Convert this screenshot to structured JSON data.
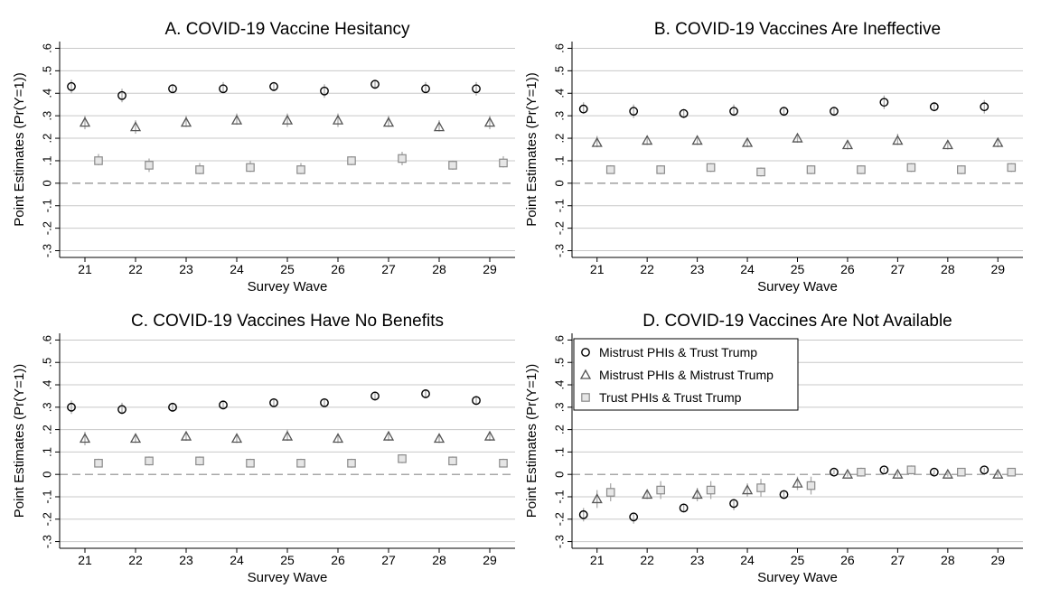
{
  "chart_data": [
    {
      "type": "scatter",
      "title": "A. COVID-19 Vaccine Hesitancy",
      "xlabel": "Survey Wave",
      "ylabel": "Point Estimates (Pr(Y=1))",
      "categories": [
        "21",
        "22",
        "23",
        "24",
        "25",
        "26",
        "27",
        "28",
        "29"
      ],
      "ylim": [
        -0.33,
        0.63
      ],
      "yticks": [
        ".6",
        ".5",
        ".4",
        ".3",
        ".2",
        ".1",
        "0",
        "-.1",
        "-.2",
        "-.3"
      ],
      "grid": true,
      "reference_line": 0,
      "series": [
        {
          "name": "Mistrust PHIs & Trust Trump",
          "marker": "circle",
          "values": [
            0.43,
            0.39,
            0.42,
            0.42,
            0.43,
            0.41,
            0.44,
            0.42,
            0.42
          ],
          "ci_low": [
            0.4,
            0.36,
            0.4,
            0.4,
            0.41,
            0.38,
            0.42,
            0.4,
            0.39
          ],
          "ci_high": [
            0.46,
            0.42,
            0.44,
            0.45,
            0.45,
            0.44,
            0.46,
            0.45,
            0.45
          ]
        },
        {
          "name": "Mistrust PHIs & Mistrust Trump",
          "marker": "triangle",
          "values": [
            0.27,
            0.25,
            0.27,
            0.28,
            0.28,
            0.28,
            0.27,
            0.25,
            0.27
          ],
          "ci_low": [
            0.24,
            0.22,
            0.25,
            0.26,
            0.25,
            0.25,
            0.25,
            0.23,
            0.24
          ],
          "ci_high": [
            0.3,
            0.28,
            0.3,
            0.31,
            0.31,
            0.31,
            0.3,
            0.28,
            0.3
          ]
        },
        {
          "name": "Trust PHIs & Trust Trump",
          "marker": "square",
          "values": [
            0.1,
            0.08,
            0.06,
            0.07,
            0.06,
            0.1,
            0.11,
            0.08,
            0.09
          ],
          "ci_low": [
            0.08,
            0.05,
            0.04,
            0.05,
            0.04,
            0.08,
            0.08,
            0.06,
            0.07
          ],
          "ci_high": [
            0.13,
            0.11,
            0.09,
            0.1,
            0.09,
            0.12,
            0.14,
            0.1,
            0.12
          ]
        }
      ]
    },
    {
      "type": "scatter",
      "title": "B. COVID-19 Vaccines Are Ineffective",
      "xlabel": "Survey Wave",
      "ylabel": "Point Estimates (Pr(Y=1))",
      "categories": [
        "21",
        "22",
        "23",
        "24",
        "25",
        "26",
        "27",
        "28",
        "29"
      ],
      "ylim": [
        -0.33,
        0.63
      ],
      "yticks": [
        ".6",
        ".5",
        ".4",
        ".3",
        ".2",
        ".1",
        "0",
        "-.1",
        "-.2",
        "-.3"
      ],
      "grid": true,
      "reference_line": 0,
      "series": [
        {
          "name": "Mistrust PHIs & Trust Trump",
          "marker": "circle",
          "values": [
            0.33,
            0.32,
            0.31,
            0.32,
            0.32,
            0.32,
            0.36,
            0.34,
            0.34
          ],
          "ci_low": [
            0.31,
            0.29,
            0.29,
            0.3,
            0.3,
            0.3,
            0.33,
            0.32,
            0.31
          ],
          "ci_high": [
            0.36,
            0.35,
            0.33,
            0.35,
            0.34,
            0.34,
            0.39,
            0.36,
            0.37
          ]
        },
        {
          "name": "Mistrust PHIs & Mistrust Trump",
          "marker": "triangle",
          "values": [
            0.18,
            0.19,
            0.19,
            0.18,
            0.2,
            0.17,
            0.19,
            0.17,
            0.18
          ],
          "ci_low": [
            0.16,
            0.17,
            0.17,
            0.16,
            0.18,
            0.15,
            0.17,
            0.15,
            0.16
          ],
          "ci_high": [
            0.21,
            0.21,
            0.21,
            0.2,
            0.22,
            0.19,
            0.22,
            0.19,
            0.2
          ]
        },
        {
          "name": "Trust PHIs & Trust Trump",
          "marker": "square",
          "values": [
            0.06,
            0.06,
            0.07,
            0.05,
            0.06,
            0.06,
            0.07,
            0.06,
            0.07
          ],
          "ci_low": [
            0.05,
            0.04,
            0.05,
            0.03,
            0.04,
            0.04,
            0.05,
            0.04,
            0.05
          ],
          "ci_high": [
            0.08,
            0.08,
            0.09,
            0.07,
            0.08,
            0.08,
            0.09,
            0.08,
            0.09
          ]
        }
      ]
    },
    {
      "type": "scatter",
      "title": "C. COVID-19 Vaccines Have No Benefits",
      "xlabel": "Survey Wave",
      "ylabel": "Point Estimates (Pr(Y=1))",
      "categories": [
        "21",
        "22",
        "23",
        "24",
        "25",
        "26",
        "27",
        "28",
        "29"
      ],
      "ylim": [
        -0.33,
        0.63
      ],
      "yticks": [
        ".6",
        ".5",
        ".4",
        ".3",
        ".2",
        ".1",
        "0",
        "-.1",
        "-.2",
        "-.3"
      ],
      "grid": true,
      "reference_line": 0,
      "series": [
        {
          "name": "Mistrust PHIs & Trust Trump",
          "marker": "circle",
          "values": [
            0.3,
            0.29,
            0.3,
            0.31,
            0.32,
            0.32,
            0.35,
            0.36,
            0.33
          ],
          "ci_low": [
            0.27,
            0.27,
            0.28,
            0.29,
            0.3,
            0.3,
            0.33,
            0.34,
            0.31
          ],
          "ci_high": [
            0.33,
            0.32,
            0.32,
            0.33,
            0.34,
            0.34,
            0.37,
            0.38,
            0.35
          ]
        },
        {
          "name": "Mistrust PHIs & Mistrust Trump",
          "marker": "triangle",
          "values": [
            0.16,
            0.16,
            0.17,
            0.16,
            0.17,
            0.16,
            0.17,
            0.16,
            0.17
          ],
          "ci_low": [
            0.13,
            0.14,
            0.15,
            0.14,
            0.15,
            0.14,
            0.15,
            0.14,
            0.15
          ],
          "ci_high": [
            0.19,
            0.18,
            0.19,
            0.18,
            0.2,
            0.18,
            0.19,
            0.18,
            0.19
          ]
        },
        {
          "name": "Trust PHIs & Trust Trump",
          "marker": "square",
          "values": [
            0.05,
            0.06,
            0.06,
            0.05,
            0.05,
            0.05,
            0.07,
            0.06,
            0.05
          ],
          "ci_low": [
            0.04,
            0.04,
            0.04,
            0.04,
            0.04,
            0.03,
            0.05,
            0.04,
            0.04
          ],
          "ci_high": [
            0.07,
            0.08,
            0.08,
            0.07,
            0.07,
            0.07,
            0.09,
            0.08,
            0.07
          ]
        }
      ]
    },
    {
      "type": "scatter",
      "title": "D. COVID-19 Vaccines Are Not Available",
      "xlabel": "Survey Wave",
      "ylabel": "Point Estimates (Pr(Y=1))",
      "categories": [
        "21",
        "22",
        "23",
        "24",
        "25",
        "26",
        "27",
        "28",
        "29"
      ],
      "ylim": [
        -0.33,
        0.63
      ],
      "yticks": [
        ".6",
        ".5",
        ".4",
        ".3",
        ".2",
        ".1",
        "0",
        "-.1",
        "-.2",
        "-.3"
      ],
      "grid": true,
      "reference_line": 0,
      "legend_placement": "top-left",
      "series": [
        {
          "name": "Mistrust PHIs & Trust Trump",
          "marker": "circle",
          "values": [
            -0.18,
            -0.19,
            -0.15,
            -0.13,
            -0.09,
            0.01,
            0.02,
            0.01,
            0.02
          ],
          "ci_low": [
            -0.21,
            -0.22,
            -0.17,
            -0.16,
            -0.11,
            0.0,
            0.01,
            0.0,
            0.01
          ],
          "ci_high": [
            -0.15,
            -0.17,
            -0.13,
            -0.11,
            -0.07,
            0.02,
            0.03,
            0.02,
            0.03
          ]
        },
        {
          "name": "Mistrust PHIs & Mistrust Trump",
          "marker": "triangle",
          "values": [
            -0.11,
            -0.09,
            -0.09,
            -0.07,
            -0.04,
            0.0,
            0.0,
            0.0,
            0.0
          ],
          "ci_low": [
            -0.15,
            -0.11,
            -0.12,
            -0.1,
            -0.07,
            -0.01,
            -0.01,
            -0.01,
            -0.01
          ],
          "ci_high": [
            -0.07,
            -0.07,
            -0.06,
            -0.04,
            -0.01,
            0.01,
            0.01,
            0.01,
            0.01
          ]
        },
        {
          "name": "Trust PHIs & Trust Trump",
          "marker": "square",
          "values": [
            -0.08,
            -0.07,
            -0.07,
            -0.06,
            -0.05,
            0.01,
            0.02,
            0.01,
            0.01
          ],
          "ci_low": [
            -0.12,
            -0.11,
            -0.11,
            -0.1,
            -0.09,
            -0.01,
            0.0,
            0.0,
            0.0
          ],
          "ci_high": [
            -0.04,
            -0.03,
            -0.03,
            -0.02,
            -0.01,
            0.03,
            0.04,
            0.02,
            0.02
          ]
        }
      ]
    }
  ],
  "colors": {
    "circle_stroke": "#000000",
    "triangle_stroke": "#555555",
    "square_stroke": "#8a8a8a",
    "ci_line": "#aaaaaa",
    "grid": "#c8c8c8",
    "zero_line": "#8c8c8c"
  }
}
